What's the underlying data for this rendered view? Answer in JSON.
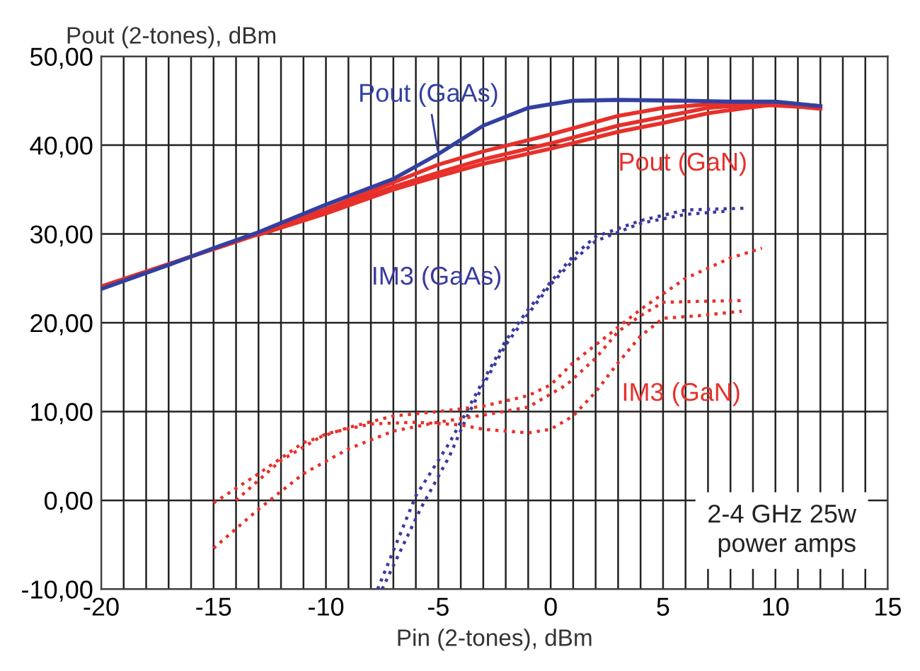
{
  "chart_data": {
    "type": "line",
    "xlabel": "Pin (2-tones), dBm",
    "ylabel": "Pout (2-tones), dBm",
    "xlim": [
      -20,
      15
    ],
    "ylim": [
      -10,
      50
    ],
    "xticks": [
      -20,
      {
        "value": -19,
        "label": null
      },
      {
        "value": -18,
        "label": null
      },
      {
        "value": -17,
        "label": null
      },
      {
        "value": -16,
        "label": null
      },
      -15,
      {
        "value": -14,
        "label": null
      },
      {
        "value": -13,
        "label": null
      },
      {
        "value": -12,
        "label": null
      },
      {
        "value": -11,
        "label": null
      },
      -10,
      {
        "value": -9,
        "label": null
      },
      {
        "value": -8,
        "label": null
      },
      {
        "value": -7,
        "label": null
      },
      {
        "value": -6,
        "label": null
      },
      -5,
      {
        "value": -4,
        "label": null
      },
      {
        "value": -3,
        "label": null
      },
      {
        "value": -2,
        "label": null
      },
      {
        "value": -1,
        "label": null
      },
      0,
      {
        "value": 1,
        "label": null
      },
      {
        "value": 2,
        "label": null
      },
      {
        "value": 3,
        "label": null
      },
      {
        "value": 4,
        "label": null
      },
      5,
      {
        "value": 6,
        "label": null
      },
      {
        "value": 7,
        "label": null
      },
      {
        "value": 8,
        "label": null
      },
      {
        "value": 9,
        "label": null
      },
      10,
      {
        "value": 11,
        "label": null
      },
      {
        "value": 12,
        "label": null
      },
      {
        "value": 13,
        "label": null
      },
      {
        "value": 14,
        "label": null
      },
      15
    ],
    "yticks": [
      {
        "value": -10,
        "label": "-10,00"
      },
      {
        "value": 0,
        "label": "0,00"
      },
      {
        "value": 10,
        "label": "10,00"
      },
      {
        "value": 20,
        "label": "20,00"
      },
      {
        "value": 30,
        "label": "30,00"
      },
      {
        "value": 40,
        "label": "40,00"
      },
      {
        "value": 50,
        "label": "50,00"
      }
    ],
    "grid": true,
    "legend": false,
    "marker": "none",
    "series": [
      {
        "color": "#e8302a",
        "line_style": "solid",
        "x": [
          -20,
          -15,
          -13,
          -10,
          -7,
          -5,
          -3,
          0,
          3,
          5,
          7,
          10,
          12
        ],
        "values": [
          24.1,
          28.3,
          30,
          32.8,
          35.8,
          37.8,
          39.3,
          41.2,
          43.3,
          44.2,
          44.6,
          44.8,
          44.4
        ]
      },
      {
        "name": "Pout (GaN)",
        "color": "#e8302a",
        "line_style": "solid",
        "x": [
          -15,
          -13,
          -10,
          -7,
          -5,
          -3,
          0,
          3,
          5,
          7,
          9,
          12
        ],
        "values": [
          28.3,
          30,
          32.5,
          35.3,
          36.9,
          38.4,
          40.2,
          42.2,
          43.2,
          44.2,
          44.6,
          44.2
        ]
      },
      {
        "color": "#e8302a",
        "line_style": "solid",
        "x": [
          -13,
          -10,
          -7,
          -5,
          -3,
          0,
          3,
          5,
          7,
          9,
          10,
          12
        ],
        "values": [
          29.9,
          32.3,
          35,
          36.5,
          37.9,
          39.6,
          41.5,
          42.5,
          43.6,
          44.3,
          44.6,
          44.1
        ]
      },
      {
        "name": "Pout (GaAs)",
        "color": "#3340a0",
        "line_style": "solid",
        "x": [
          -20,
          -17,
          -15,
          -13,
          -10,
          -7,
          -5,
          -3,
          -1,
          1,
          3,
          6,
          8,
          10,
          12
        ],
        "values": [
          23.8,
          26.5,
          28.4,
          30.2,
          33.3,
          36.2,
          39,
          42.2,
          44.2,
          45,
          45.1,
          45,
          44.9,
          44.9,
          44.4
        ]
      },
      {
        "name": "IM3 (GaAs)",
        "color": "#3a3aa0",
        "line_style": "dotted",
        "x": [
          -7.7,
          -6,
          -4.5,
          -4,
          -3,
          -2,
          -1,
          0,
          1,
          2,
          4,
          6,
          8.7
        ],
        "values": [
          -10,
          0.5,
          6.5,
          8.8,
          13.5,
          18,
          21.5,
          24.6,
          27.5,
          29.7,
          31.5,
          32.7,
          32.9
        ]
      },
      {
        "color": "#3a3aa0",
        "line_style": "dotted",
        "x": [
          -7.5,
          -5.8,
          -4.5,
          -3.8,
          -3,
          -2,
          -1,
          0,
          1,
          2,
          4,
          6,
          8
        ],
        "values": [
          -10,
          -1,
          5,
          9,
          13,
          17.5,
          21,
          24.3,
          27,
          29.2,
          31.2,
          32.2,
          32.6
        ]
      },
      {
        "name": "IM3 (GaN)",
        "color": "#e8302a",
        "line_style": "dotted",
        "x": [
          -15,
          -13,
          -11,
          -9,
          -7,
          -5,
          -3,
          -1,
          0,
          1,
          2,
          4,
          6,
          8,
          9.4
        ],
        "values": [
          -0.3,
          3,
          6.5,
          8.2,
          9.5,
          10,
          10.6,
          11.8,
          13,
          15.5,
          17.5,
          21.5,
          25,
          27.3,
          28.4
        ]
      },
      {
        "color": "#e8302a",
        "line_style": "dotted",
        "x": [
          -15,
          -13,
          -11,
          -9,
          -7,
          -5,
          -3,
          -1,
          0.7,
          2,
          3,
          4,
          5,
          6.4,
          8.5
        ],
        "values": [
          -5.4,
          -1,
          3,
          5.8,
          7.8,
          8.8,
          9.6,
          10.5,
          13,
          16,
          19,
          20.8,
          22.3,
          22.4,
          22.5
        ]
      },
      {
        "color": "#e8302a",
        "line_style": "dotted",
        "x": [
          -14,
          -12,
          -10,
          -8,
          -6,
          -4,
          -3,
          -1,
          0,
          1,
          2,
          3,
          4,
          5,
          6.6,
          8.5
        ],
        "values": [
          0,
          4.5,
          7.5,
          8.6,
          8.8,
          8.5,
          8,
          7.6,
          8,
          9.5,
          12.2,
          15.5,
          18.5,
          20.5,
          20.8,
          21.3
        ]
      }
    ],
    "annotations": [
      "2-4 GHz 25w\npower amps"
    ]
  }
}
